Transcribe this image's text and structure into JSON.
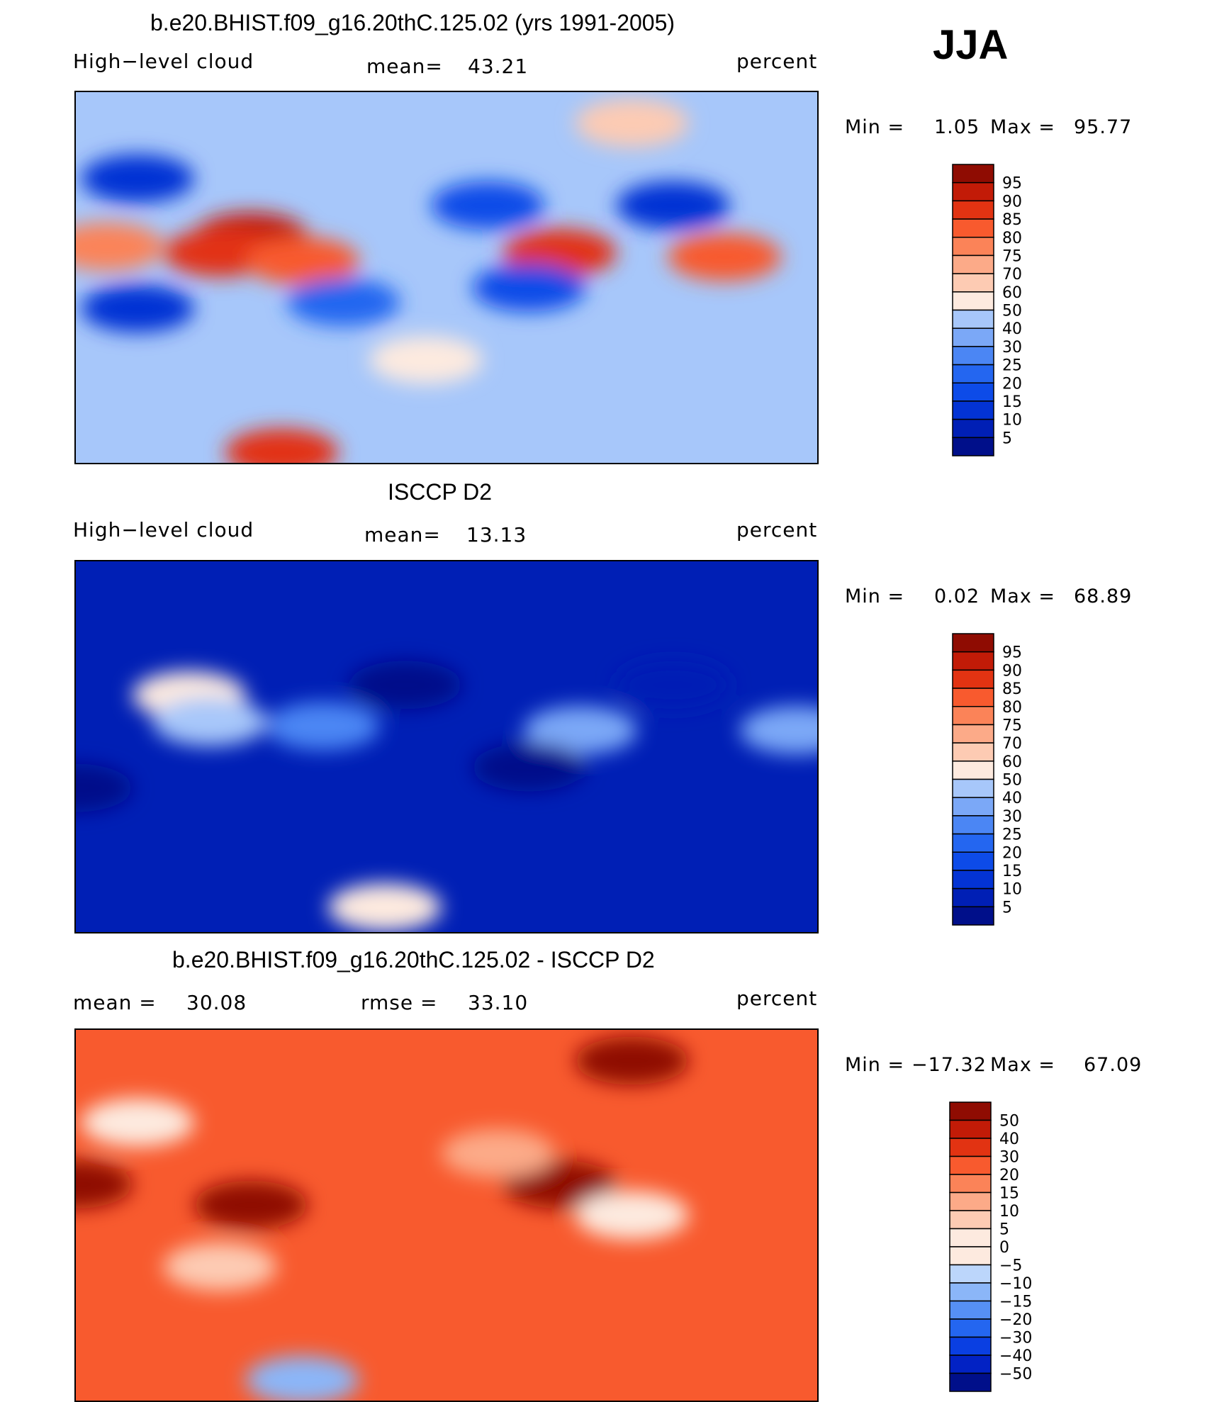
{
  "season": "JJA",
  "colors": {
    "seq": [
      "#000f8a",
      "#001fb5",
      "#0333d4",
      "#0d4be8",
      "#2466f0",
      "#4b86f4",
      "#7ba8f7",
      "#a7c7fa",
      "#d2e6fc",
      "#fdeadf",
      "#fdcbb3",
      "#fcaa88",
      "#fb8358",
      "#f85a2e",
      "#e23312",
      "#c21b07",
      "#8f0c02"
    ],
    "diff": [
      "#000f8a",
      "#0222c4",
      "#0a3fe2",
      "#2466f0",
      "#5690f5",
      "#8bb6f8",
      "#bcd6fb",
      "#fdeadf",
      "#fdcbb3",
      "#fcaa88",
      "#fb8358",
      "#f85a2e",
      "#e23312",
      "#c21b07",
      "#8f0c02"
    ]
  },
  "chart_data": [
    {
      "type": "heatmap",
      "title": "b.e20.BHIST.f09_g16.20thC.125.02 (yrs 1991-2005)",
      "left_label": "High−level cloud",
      "mean_label": "mean=",
      "mean_value": "43.21",
      "unit": "percent",
      "min_label": "Min  =",
      "min_value": "1.05",
      "max_label": "Max  =",
      "max_value": "95.77",
      "levels": [
        "95",
        "90",
        "85",
        "80",
        "75",
        "70",
        "60",
        "50",
        "40",
        "30",
        "25",
        "20",
        "15",
        "10",
        "5"
      ],
      "field_regions": [
        {
          "lon": 115,
          "lat": 20,
          "value": 90
        },
        {
          "lon": 100,
          "lat": 12,
          "value": 88
        },
        {
          "lon": 140,
          "lat": 8,
          "value": 82
        },
        {
          "lon": 45,
          "lat": 15,
          "value": 75
        },
        {
          "lon": 265,
          "lat": 12,
          "value": 85
        },
        {
          "lon": 345,
          "lat": 10,
          "value": 82
        },
        {
          "lon": 60,
          "lat": 48,
          "value": 10
        },
        {
          "lon": 230,
          "lat": 35,
          "value": 15
        },
        {
          "lon": 320,
          "lat": 35,
          "value": 12
        },
        {
          "lon": 60,
          "lat": -15,
          "value": 10
        },
        {
          "lon": 160,
          "lat": -12,
          "value": 20
        },
        {
          "lon": 250,
          "lat": -5,
          "value": 15
        },
        {
          "lon": 200,
          "lat": -40,
          "value": 55
        },
        {
          "lon": 130,
          "lat": -85,
          "value": 85
        },
        {
          "lon": 300,
          "lat": 75,
          "value": 60
        }
      ]
    },
    {
      "type": "heatmap",
      "title": "ISCCP D2",
      "left_label": "High−level cloud",
      "mean_label": "mean=",
      "mean_value": "13.13",
      "unit": "percent",
      "min_label": "Min  =",
      "min_value": "0.02",
      "max_label": "Max  =",
      "max_value": "68.89",
      "levels": [
        "95",
        "90",
        "85",
        "80",
        "75",
        "70",
        "60",
        "50",
        "40",
        "30",
        "25",
        "20",
        "15",
        "10",
        "5"
      ],
      "field_regions": [
        {
          "lon": 85,
          "lat": 25,
          "value": 55
        },
        {
          "lon": 95,
          "lat": 12,
          "value": 42
        },
        {
          "lon": 20,
          "lat": 8,
          "value": 35
        },
        {
          "lon": 275,
          "lat": 8,
          "value": 32
        },
        {
          "lon": 150,
          "lat": 10,
          "value": 25
        },
        {
          "lon": 180,
          "lat": -78,
          "value": 55
        },
        {
          "lon": 250,
          "lat": -10,
          "value": 2
        },
        {
          "lon": 30,
          "lat": -20,
          "value": 3
        },
        {
          "lon": 190,
          "lat": 30,
          "value": 4
        },
        {
          "lon": 320,
          "lat": 30,
          "value": 5
        }
      ]
    },
    {
      "type": "heatmap",
      "title": "b.e20.BHIST.f09_g16.20thC.125.02 - ISCCP D2",
      "left_label": "mean  =",
      "mean_value": "30.08",
      "rmse_label": "rmse  =",
      "rmse_value": "33.10",
      "unit": "percent",
      "min_label": "Min  =",
      "min_value": "−17.32",
      "max_label": "Max  =",
      "max_value": "67.09",
      "levels": [
        "50",
        "40",
        "30",
        "20",
        "15",
        "10",
        "5",
        "0",
        "−5",
        "−10",
        "−15",
        "−20",
        "−30",
        "−40",
        "−50"
      ],
      "field_regions": [
        {
          "lon": 115,
          "lat": 5,
          "value": 55
        },
        {
          "lon": 30,
          "lat": 15,
          "value": 50
        },
        {
          "lon": 265,
          "lat": 15,
          "value": 52
        },
        {
          "lon": 300,
          "lat": 75,
          "value": 55
        },
        {
          "lon": 60,
          "lat": 45,
          "value": 3
        },
        {
          "lon": 300,
          "lat": 0,
          "value": 2
        },
        {
          "lon": 100,
          "lat": -25,
          "value": 5
        },
        {
          "lon": 140,
          "lat": -80,
          "value": -15
        },
        {
          "lon": 235,
          "lat": 30,
          "value": 12
        }
      ]
    }
  ]
}
